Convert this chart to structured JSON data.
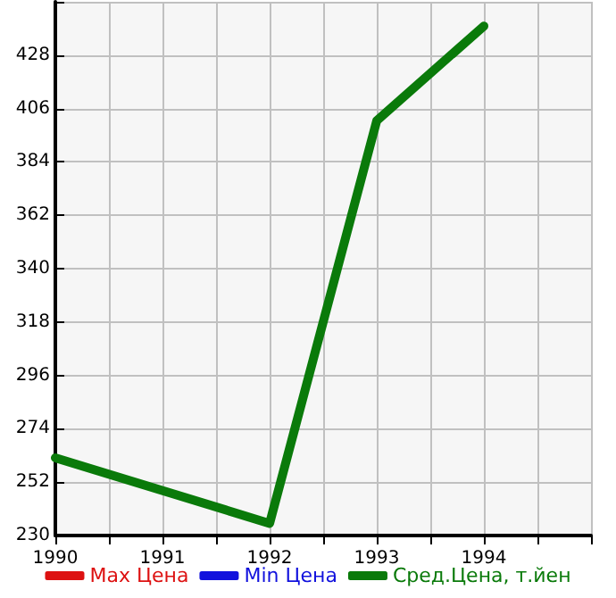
{
  "chart_data": {
    "type": "line",
    "x": [
      1990,
      1991,
      1992,
      1993,
      1994
    ],
    "series": [
      {
        "name": "Max Цена",
        "color": "#dd1111",
        "values": [
          null,
          null,
          null,
          null,
          null
        ]
      },
      {
        "name": "Min Цена",
        "color": "#1111dd",
        "values": [
          null,
          null,
          null,
          null,
          null
        ]
      },
      {
        "name": "Сред.Цена, т.йен",
        "color": "#0a7a0a",
        "values": [
          262,
          null,
          235,
          401,
          440
        ]
      }
    ],
    "xlim": [
      1990,
      1995
    ],
    "xticks": [
      1990,
      {
        "value": 1990.5,
        "label": null
      },
      1991,
      {
        "value": 1991.5,
        "label": null
      },
      1992,
      {
        "value": 1992.5,
        "label": null
      },
      1993,
      {
        "value": 1993.5,
        "label": null
      },
      1994,
      {
        "value": 1994.5,
        "label": null
      },
      {
        "value": 1995,
        "label": null
      }
    ],
    "ylim": [
      230,
      450
    ],
    "yticks": [
      230,
      252,
      274,
      296,
      318,
      340,
      362,
      384,
      406,
      428,
      {
        "value": 450,
        "label": null
      }
    ],
    "grid": true,
    "legend": "bottom",
    "marker": "none",
    "line_style": "solid"
  }
}
